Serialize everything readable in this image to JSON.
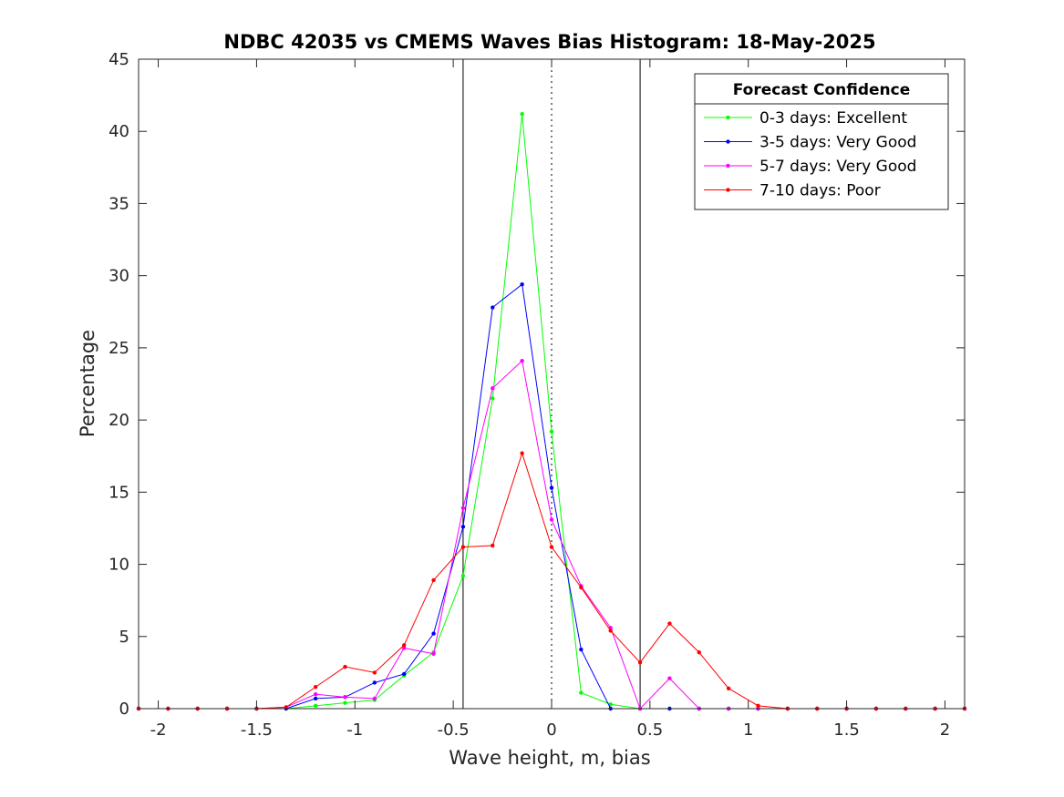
{
  "chart_data": {
    "type": "line",
    "title": "NDBC 42035 vs CMEMS Waves Bias Histogram: 18-May-2025",
    "xlabel": "Wave height, m, bias",
    "ylabel": "Percentage",
    "xlim": [
      -2.1,
      2.1
    ],
    "ylim": [
      0,
      45
    ],
    "xticks": [
      -2,
      -1.5,
      -1,
      -0.5,
      0,
      0.5,
      1,
      1.5,
      2
    ],
    "xtick_labels": [
      "-2",
      "-1.5",
      "-1",
      "-0.5",
      "0",
      "0.5",
      "1",
      "1.5",
      "2"
    ],
    "yticks": [
      0,
      5,
      10,
      15,
      20,
      25,
      30,
      35,
      40,
      45
    ],
    "ytick_labels": [
      "0",
      "5",
      "10",
      "15",
      "20",
      "25",
      "30",
      "35",
      "40",
      "45"
    ],
    "grid": false,
    "legend_title": "Forecast Confidence",
    "legend_position": "top-right",
    "vertical_lines": [
      {
        "x": -0.45,
        "style": "solid",
        "color": "#000000"
      },
      {
        "x": 0,
        "style": "dotted",
        "color": "#000000"
      },
      {
        "x": 0.45,
        "style": "solid",
        "color": "#000000"
      }
    ],
    "x": [
      -2.1,
      -1.95,
      -1.8,
      -1.65,
      -1.5,
      -1.35,
      -1.2,
      -1.05,
      -0.9,
      -0.75,
      -0.6,
      -0.45,
      -0.3,
      -0.15,
      0,
      0.15,
      0.3,
      0.45,
      0.6,
      0.75,
      0.9,
      1.05,
      1.2,
      1.35,
      1.5,
      1.65,
      1.8,
      1.95,
      2.1
    ],
    "series": [
      {
        "name": "0-3 days: Excellent",
        "color": "#00ff00",
        "values": [
          0,
          0,
          0,
          0,
          0,
          0,
          0.2,
          0.4,
          0.6,
          2.3,
          3.9,
          9.2,
          21.5,
          41.2,
          19.2,
          1.1,
          0.3,
          0,
          0,
          0,
          0,
          0,
          0,
          0,
          0,
          0,
          0,
          0,
          0
        ]
      },
      {
        "name": "3-5 days: Very Good",
        "color": "#0000ff",
        "values": [
          0,
          0,
          0,
          0,
          0,
          0,
          0.7,
          0.8,
          1.8,
          2.4,
          5.2,
          12.6,
          27.8,
          29.4,
          15.3,
          4.1,
          0,
          0,
          0,
          0,
          0,
          0,
          0,
          0,
          0,
          0,
          0,
          0,
          0
        ]
      },
      {
        "name": "5-7 days: Very Good",
        "color": "#ff00ff",
        "values": [
          0,
          0,
          0,
          0,
          0,
          0.1,
          1.0,
          0.8,
          0.7,
          4.2,
          3.8,
          13.9,
          22.2,
          24.1,
          13.1,
          8.5,
          5.6,
          0,
          2.1,
          0,
          0,
          0,
          0,
          0,
          0,
          0,
          0,
          0,
          0
        ]
      },
      {
        "name": "7-10 days: Poor",
        "color": "#ff0000",
        "values": [
          0,
          0,
          0,
          0,
          0,
          0.1,
          1.5,
          2.9,
          2.5,
          4.4,
          8.9,
          11.2,
          11.3,
          17.7,
          11.2,
          8.4,
          5.4,
          3.2,
          5.9,
          3.9,
          1.4,
          0.2,
          0,
          0,
          0,
          0,
          0,
          0,
          0
        ]
      }
    ]
  }
}
